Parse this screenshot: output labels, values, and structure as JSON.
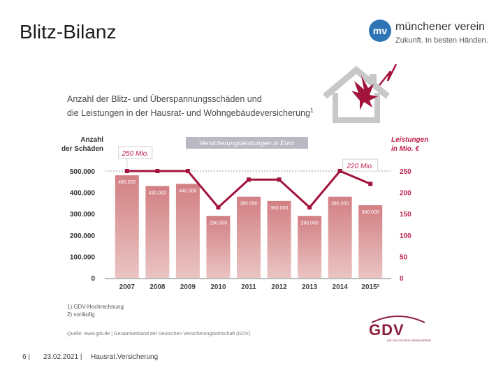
{
  "slide": {
    "title": "Blitz-Bilanz",
    "page_number": "6 |",
    "date": "23.02.2021 |",
    "footer_title": "Hausrat.Versicherung"
  },
  "logo": {
    "badge": "mv",
    "name": "münchener verein",
    "slogan": "Zukunft. In besten Händen."
  },
  "gdv": {
    "name": "GDV",
    "subtitle": "DIE DEUTSCHEN VERSICHERER"
  },
  "colors": {
    "bar": "#d99a99",
    "line": "#a3143c",
    "accent": "#c0214c",
    "label_box": "#b9b9c3"
  },
  "chart_data": {
    "type": "bar",
    "title_line1": "Anzahl der Blitz- und Überspannungsschäden und",
    "title_line2": "die Leistungen in der Hausrat- und Wohngebäudeversicherung",
    "title_sup": "1",
    "categories": [
      "2007",
      "2008",
      "2009",
      "2010",
      "2011",
      "2012",
      "2013",
      "2014",
      "2015²"
    ],
    "series": [
      {
        "name": "Anzahl der Schäden",
        "axis": "left",
        "values": [
          480000,
          430000,
          440000,
          290000,
          380000,
          360000,
          290000,
          380000,
          340000
        ],
        "labels": [
          "480.000",
          "430.000",
          "440.000",
          "290.000",
          "380.000",
          "360.000",
          "290.000",
          "380.000",
          "340.000"
        ]
      },
      {
        "name": "Leistungen in Mio. €",
        "axis": "right",
        "type": "line",
        "values": [
          250,
          250,
          250,
          165,
          230,
          230,
          165,
          250,
          220
        ]
      }
    ],
    "ylabel_left_line1": "Anzahl",
    "ylabel_left_line2": "der Schäden",
    "ylabel_right_line1": "Leistungen",
    "ylabel_right_line2": "in Mio. €",
    "ylim_left": [
      0,
      500000
    ],
    "ylim_right": [
      0,
      250
    ],
    "left_ticks": [
      "0",
      "100.000",
      "200.000",
      "300.000",
      "400.000",
      "500.000"
    ],
    "right_ticks": [
      "0",
      "50",
      "100",
      "150",
      "200",
      "250"
    ],
    "legend_label": "Versicherungsleistungen in Euro",
    "callout_first": "250 Mio.",
    "callout_last": "220 Mio.",
    "footnote1": "1) GDV-Hochrechnung",
    "footnote2": "2) vorläufig",
    "source": "Quelle: www.gdv.de | Gesamtverband der Deutschen Versicherungswirtschaft (GDV)"
  }
}
